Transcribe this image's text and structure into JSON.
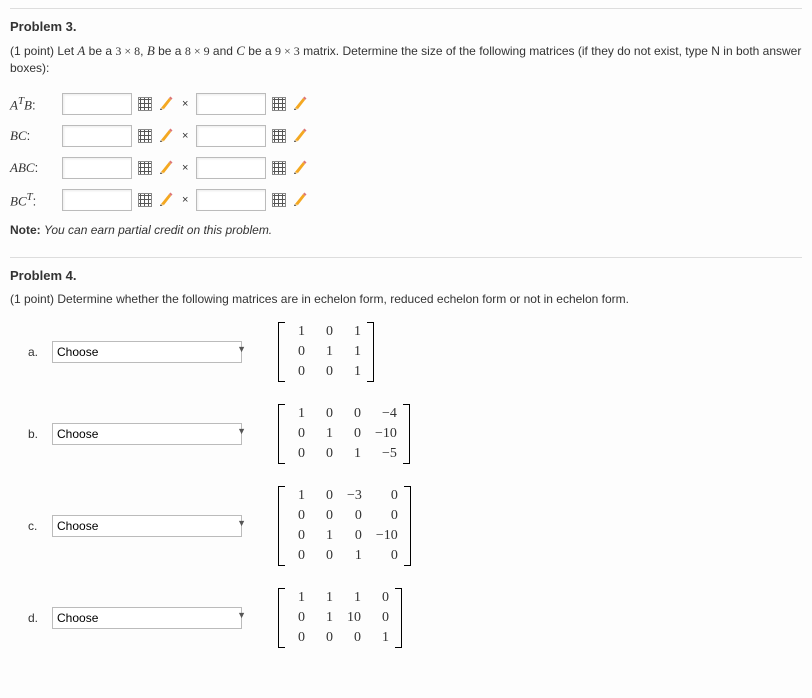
{
  "problem3": {
    "title": "Problem 3.",
    "points": "(1 point)",
    "prompt_before": "Let ",
    "A_text": "A",
    "A_dim": "3 × 8",
    "B_text": "B",
    "B_dim": "8 × 9",
    "C_text": "C",
    "C_dim": "9 × 3",
    "prompt_mid": " matrix. Determine the size of the following matrices (if they do not exist, type N in both answer boxes):",
    "rows": [
      {
        "label_html": "A<sup>T</sup>B",
        "colon": ":"
      },
      {
        "label_html": "BC",
        "colon": ":"
      },
      {
        "label_html": "ABC",
        "colon": ":"
      },
      {
        "label_html": "BC<sup>T</sup>",
        "colon": ":"
      }
    ],
    "times": "×",
    "note_label": "Note:",
    "note_text": "You can earn partial credit on this problem."
  },
  "problem4": {
    "title": "Problem 4.",
    "points": "(1 point)",
    "prompt": "Determine whether the following matrices are in echelon form, reduced echelon form or not in echelon form.",
    "choose_label": "Choose",
    "items": [
      {
        "letter": "a.",
        "cols": 3,
        "rows": 3,
        "cells": [
          "1",
          "0",
          "1",
          "0",
          "1",
          "1",
          "0",
          "0",
          "1"
        ]
      },
      {
        "letter": "b.",
        "cols": 4,
        "rows": 3,
        "cells": [
          "1",
          "0",
          "0",
          "−4",
          "0",
          "1",
          "0",
          "−10",
          "0",
          "0",
          "1",
          "−5"
        ]
      },
      {
        "letter": "c.",
        "cols": 4,
        "rows": 4,
        "cells": [
          "1",
          "0",
          "−3",
          "0",
          "0",
          "0",
          "0",
          "0",
          "0",
          "1",
          "0",
          "−10",
          "0",
          "0",
          "1",
          "0"
        ]
      },
      {
        "letter": "d.",
        "cols": 4,
        "rows": 3,
        "cells": [
          "1",
          "1",
          "1",
          "0",
          "0",
          "1",
          "10",
          "0",
          "0",
          "0",
          "0",
          "1"
        ]
      }
    ]
  },
  "style": {
    "text_color": "#333333",
    "border_color": "#bbbbbb",
    "divider_color": "#dddddd",
    "pencil_body": "#f4a821",
    "pencil_tip": "#f2d39a",
    "background": "#fdfdfd"
  }
}
